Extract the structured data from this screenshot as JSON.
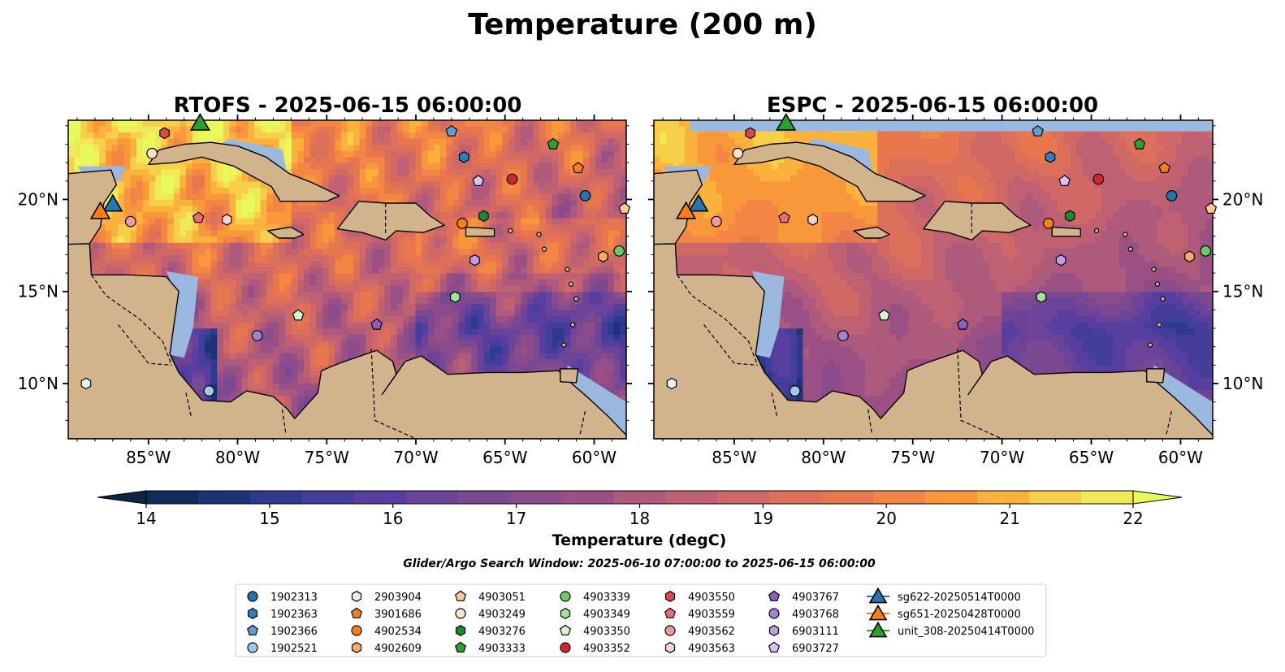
{
  "figure": {
    "suptitle": "Temperature (200 m)",
    "search_window": "Glider/Argo Search Window: 2025-06-10 07:00:00 to 2025-06-15 06:00:00"
  },
  "chart_data": {
    "type": "heatmap",
    "variable": "Temperature",
    "depth": "200 m",
    "panels": [
      {
        "title": "RTOFS - 2025-06-15 06:00:00",
        "model": "RTOFS"
      },
      {
        "title": "ESPC - 2025-06-15 06:00:00",
        "model": "ESPC"
      }
    ],
    "xlim": [
      -89.5,
      -58.2
    ],
    "ylim": [
      7.0,
      24.3
    ],
    "x_ticks": [
      {
        "value": -85,
        "label": "85°W"
      },
      {
        "value": -80,
        "label": "80°W"
      },
      {
        "value": -75,
        "label": "75°W"
      },
      {
        "value": -70,
        "label": "70°W"
      },
      {
        "value": -65,
        "label": "65°W"
      },
      {
        "value": -60,
        "label": "60°W"
      }
    ],
    "y_ticks": [
      {
        "value": 10,
        "label": "10°N"
      },
      {
        "value": 15,
        "label": "15°N"
      },
      {
        "value": 20,
        "label": "20°N"
      }
    ],
    "colorbar": {
      "label": "Temperature (degC)",
      "min": 14,
      "max": 22,
      "step": 0.5,
      "extend": "both",
      "ticks": [
        "14",
        "15",
        "16",
        "17",
        "18",
        "19",
        "20",
        "21",
        "22"
      ],
      "colors": [
        "#0c2540",
        "#122a5c",
        "#1e3277",
        "#2e3a8e",
        "#433e9c",
        "#583e9e",
        "#6b4399",
        "#7b4892",
        "#8b4c8b",
        "#9a5084",
        "#ad5a7c",
        "#bf6172",
        "#d06866",
        "#dd705b",
        "#e8774e",
        "#f38645",
        "#f9983a",
        "#fbb23d",
        "#f7cf48",
        "#f0ea58",
        "#e8fa5b"
      ]
    },
    "legend": {
      "entries": [
        {
          "label": "1902313",
          "marker": "circle",
          "color": "#1f77b4"
        },
        {
          "label": "1902363",
          "marker": "hexagon",
          "color": "#2b7fc0"
        },
        {
          "label": "1902366",
          "marker": "pentagon",
          "color": "#5a9fd6"
        },
        {
          "label": "1902521",
          "marker": "circle",
          "color": "#9ecae8"
        },
        {
          "label": "2903904",
          "marker": "hexagon",
          "color": "#e4f0fb"
        },
        {
          "label": "3901686",
          "marker": "pentagon",
          "color": "#f57c1f"
        },
        {
          "label": "4902534",
          "marker": "circle",
          "color": "#ff7f0e"
        },
        {
          "label": "4902609",
          "marker": "hexagon",
          "color": "#ffab5e"
        },
        {
          "label": "4903051",
          "marker": "pentagon",
          "color": "#ffc993"
        },
        {
          "label": "4903249",
          "marker": "circle",
          "color": "#ffe4c4"
        },
        {
          "label": "4903276",
          "marker": "hexagon",
          "color": "#1a8a2a"
        },
        {
          "label": "4903333",
          "marker": "pentagon",
          "color": "#2ca02c"
        },
        {
          "label": "4903339",
          "marker": "circle",
          "color": "#6acc64"
        },
        {
          "label": "4903349",
          "marker": "hexagon",
          "color": "#9fe39a"
        },
        {
          "label": "4903350",
          "marker": "pentagon",
          "color": "#d4f7cf"
        },
        {
          "label": "4903352",
          "marker": "circle",
          "color": "#d62728"
        },
        {
          "label": "4903550",
          "marker": "hexagon",
          "color": "#e04848"
        },
        {
          "label": "4903559",
          "marker": "pentagon",
          "color": "#ee6b73"
        },
        {
          "label": "4903562",
          "marker": "circle",
          "color": "#f39a9a"
        },
        {
          "label": "4903563",
          "marker": "hexagon",
          "color": "#fbd0d0"
        },
        {
          "label": "4903767",
          "marker": "pentagon",
          "color": "#8c5fbf"
        },
        {
          "label": "4903768",
          "marker": "circle",
          "color": "#a57fd6"
        },
        {
          "label": "6903111",
          "marker": "hexagon",
          "color": "#bf9ee6"
        },
        {
          "label": "6903727",
          "marker": "pentagon",
          "color": "#d9c2f2"
        },
        {
          "label": "sg622-20250514T0000",
          "marker": "triangle",
          "color": "#1f77b4"
        },
        {
          "label": "sg651-20250428T0000",
          "marker": "triangle",
          "color": "#ff7f0e"
        },
        {
          "label": "unit_308-20250414T0000",
          "marker": "triangle",
          "color": "#2ca02c"
        }
      ]
    },
    "floats": [
      {
        "id": "1902313",
        "lon": -60.5,
        "lat": 20.2
      },
      {
        "id": "1902363",
        "lon": -67.3,
        "lat": 22.3
      },
      {
        "id": "1902366",
        "lon": -68.0,
        "lat": 23.7
      },
      {
        "id": "1902521",
        "lon": -81.6,
        "lat": 9.6
      },
      {
        "id": "2903904",
        "lon": -88.5,
        "lat": 10.0
      },
      {
        "id": "3901686",
        "lon": -60.9,
        "lat": 21.7
      },
      {
        "id": "4902534",
        "lon": -67.4,
        "lat": 18.7
      },
      {
        "id": "4902609",
        "lon": -59.5,
        "lat": 16.9
      },
      {
        "id": "4903051",
        "lon": -58.3,
        "lat": 19.5
      },
      {
        "id": "4903249",
        "lon": -84.8,
        "lat": 22.5
      },
      {
        "id": "4903276",
        "lon": -66.2,
        "lat": 19.1
      },
      {
        "id": "4903333",
        "lon": -62.3,
        "lat": 23.0
      },
      {
        "id": "4903339",
        "lon": -58.6,
        "lat": 17.2
      },
      {
        "id": "4903349",
        "lon": -67.8,
        "lat": 14.7
      },
      {
        "id": "4903350",
        "lon": -76.6,
        "lat": 13.7
      },
      {
        "id": "4903352",
        "lon": -64.6,
        "lat": 21.1
      },
      {
        "id": "4903550",
        "lon": -84.1,
        "lat": 23.6
      },
      {
        "id": "4903559",
        "lon": -82.2,
        "lat": 19.0
      },
      {
        "id": "4903562",
        "lon": -86.0,
        "lat": 18.8
      },
      {
        "id": "4903563",
        "lon": -80.6,
        "lat": 18.9
      },
      {
        "id": "4903767",
        "lon": -72.2,
        "lat": 13.2
      },
      {
        "id": "4903768",
        "lon": -78.9,
        "lat": 12.6
      },
      {
        "id": "6903111",
        "lon": -66.7,
        "lat": 16.7
      },
      {
        "id": "6903727",
        "lon": -66.5,
        "lat": 21.0
      }
    ],
    "gliders": [
      {
        "id": "sg622-20250514T0000",
        "lon": -87.0,
        "lat": 19.8
      },
      {
        "id": "sg651-20250428T0000",
        "lon": -87.7,
        "lat": 19.4
      },
      {
        "id": "unit_308-20250414T0000",
        "lon": -82.1,
        "lat": 24.2
      }
    ]
  },
  "style": {
    "land": "#d2b48c",
    "shelf": "#9bb8e0",
    "coast": "#000000"
  }
}
